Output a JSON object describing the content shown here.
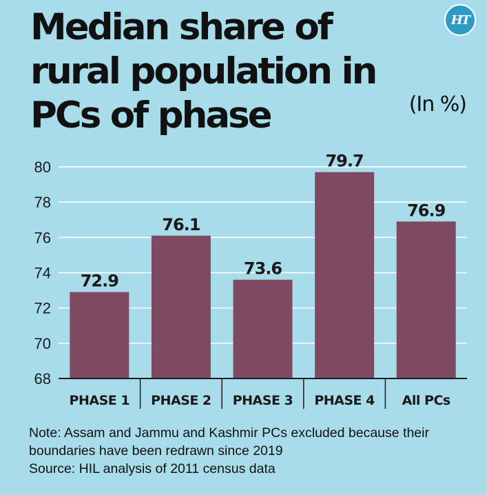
{
  "header": {
    "title": "Median share of rural population in PCs of phase",
    "unit": "(In %)",
    "logo": "HT"
  },
  "colors": {
    "background": "#a9dcea",
    "bar": "#7d4a62",
    "grid": "#ffffff",
    "axis": "#1a1a1a",
    "logo": "#2c9bc6"
  },
  "chart_data": {
    "type": "bar",
    "title": "Median share of rural population in PCs of phase",
    "categories": [
      "PHASE 1",
      "PHASE 2",
      "PHASE 3",
      "PHASE 4",
      "All PCs"
    ],
    "values": [
      72.9,
      76.1,
      73.6,
      79.7,
      76.9
    ],
    "data_labels": [
      "72.9",
      "76.1",
      "73.6",
      "79.7",
      "76.9"
    ],
    "ylim": [
      68,
      80
    ],
    "yticks": [
      68,
      70,
      72,
      74,
      76,
      78,
      80
    ],
    "grid": true,
    "xlabel": "",
    "ylabel": ""
  },
  "footer": {
    "note_line1": "Note: Assam and Jammu and Kashmir PCs excluded because their",
    "note_line2": "boundaries have been redrawn since 2019",
    "source": "Source: HIL analysis of 2011 census data"
  }
}
